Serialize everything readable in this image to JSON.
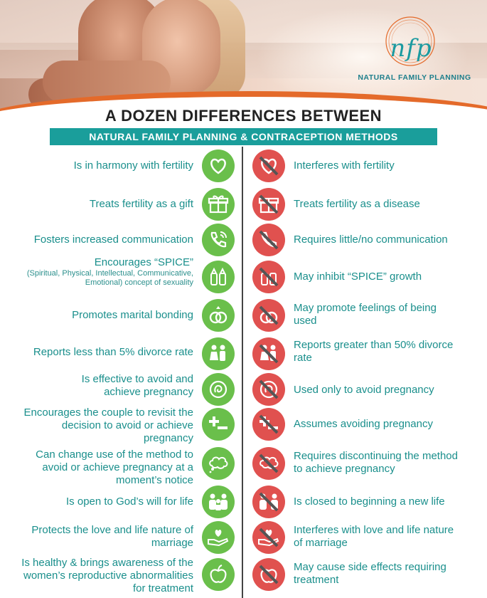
{
  "logo": {
    "mark": "nfp",
    "name": "NATURAL FAMILY PLANNING"
  },
  "title": "A DOZEN DIFFERENCES BETWEEN",
  "banner": "NATURAL FAMILY PLANNING  &  CONTRACEPTION METHODS",
  "colors": {
    "teal": "#1a9e9b",
    "green": "#6abf4b",
    "red": "#e0514f",
    "orange": "#e46a2a"
  },
  "rows": [
    {
      "icon": "heart-icon",
      "left": "Is in harmony with fertility",
      "left_sub": "",
      "right": "Interferes with fertility"
    },
    {
      "icon": "gift-icon",
      "left": "Treats fertility as a gift",
      "left_sub": "",
      "right": "Treats fertility as a disease"
    },
    {
      "icon": "phone-icon",
      "left": "Fosters increased communication",
      "left_sub": "",
      "right": "Requires little/no communication"
    },
    {
      "icon": "salt-pepper-icon",
      "left": "Encourages “SPICE”",
      "left_sub": "(Spiritual, Physical,  Intellectual, Communicative, Emotional) concept of sexuality",
      "right": "May inhibit “SPICE” growth"
    },
    {
      "icon": "rings-icon",
      "left": "Promotes marital bonding",
      "left_sub": "",
      "right": "May promote feelings of being used"
    },
    {
      "icon": "couple-icon",
      "left": "Reports less than 5% divorce rate",
      "left_sub": "",
      "right": "Reports greater than 50% divorce rate"
    },
    {
      "icon": "baby-icon",
      "left": "Is effective to avoid and achieve pregnancy",
      "left_sub": "",
      "right": "Used only to avoid pregnancy"
    },
    {
      "icon": "plus-minus-icon",
      "left": "Encourages the couple to revisit the decision to avoid or achieve pregnancy",
      "left_sub": "",
      "right": "Assumes avoiding pregnancy"
    },
    {
      "icon": "thought-bubble-icon",
      "left": "Can change use of the method to avoid or achieve pregnancy at a moment’s notice",
      "left_sub": "",
      "right": "Requires discontinuing the method to achieve pregnancy"
    },
    {
      "icon": "family-icon",
      "left": "Is open to God’s will for life",
      "left_sub": "",
      "right": "Is closed to beginning a new life"
    },
    {
      "icon": "hand-heart-icon",
      "left": "Protects the love and life nature of marriage",
      "left_sub": "",
      "right": "Interferes with love and life nature of marriage"
    },
    {
      "icon": "apple-icon",
      "left": "Is healthy & brings awareness of the women’s reproductive abnormalities for treatment",
      "left_sub": "",
      "right": "May cause side effects requiring treatment"
    }
  ]
}
